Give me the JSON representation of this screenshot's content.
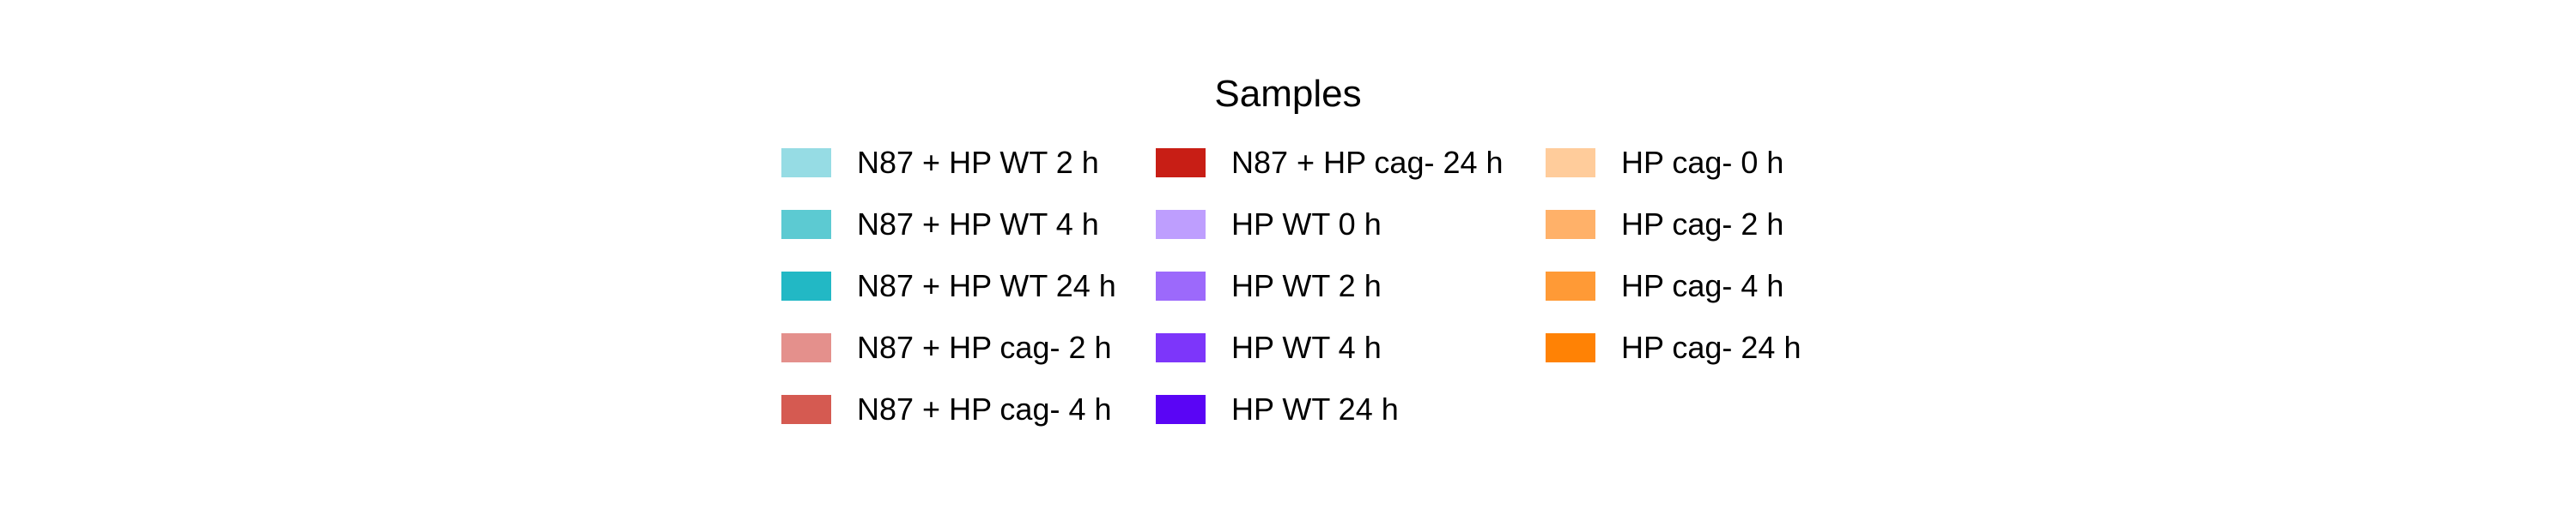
{
  "legend": {
    "title": "Samples",
    "columns": [
      {
        "items": [
          {
            "label": "N87 + HP WT 2 h",
            "color": "#96DCE4"
          },
          {
            "label": "N87 + HP WT 4 h",
            "color": "#5CCAD2"
          },
          {
            "label": "N87 + HP WT 24 h",
            "color": "#22B8C5"
          },
          {
            "label": "N87 + HP cag- 2 h",
            "color": "#E4908C"
          },
          {
            "label": "N87 + HP cag- 4 h",
            "color": "#D55A51"
          }
        ]
      },
      {
        "items": [
          {
            "label": "N87 + HP cag- 24 h",
            "color": "#C81E15"
          },
          {
            "label": "HP WT 0 h",
            "color": "#BE9EFE"
          },
          {
            "label": "HP WT 2 h",
            "color": "#9C69FB"
          },
          {
            "label": "HP WT 4 h",
            "color": "#7D36FA"
          },
          {
            "label": "HP WT 24 h",
            "color": "#5A05F5"
          }
        ]
      },
      {
        "items": [
          {
            "label": "HP cag- 0 h",
            "color": "#FFCC9B"
          },
          {
            "label": "HP cag- 2 h",
            "color": "#FFB169"
          },
          {
            "label": "HP cag- 4 h",
            "color": "#FF9A36"
          },
          {
            "label": "HP cag- 24 h",
            "color": "#FF8205"
          }
        ]
      }
    ]
  }
}
